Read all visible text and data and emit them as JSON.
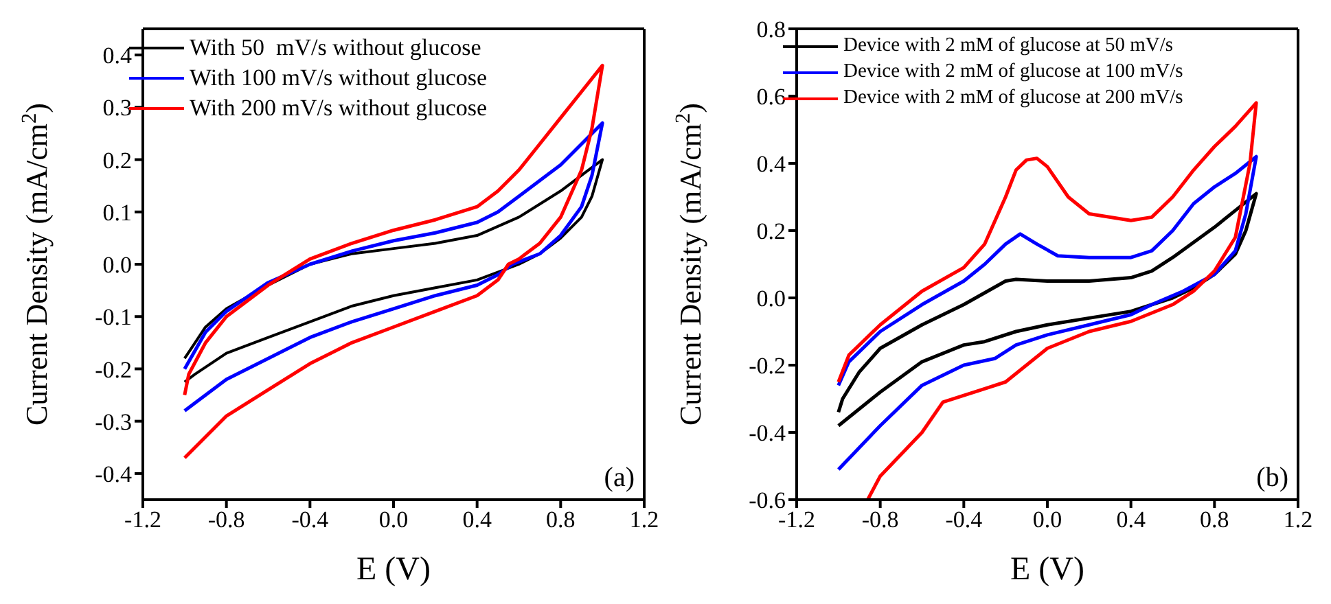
{
  "chart_data": [
    {
      "type": "line",
      "xlabel": "E (V)",
      "ylabel": "Current Density (mA/cm$^{2}$)",
      "xlim": [
        -1.2,
        1.2
      ],
      "xticks": [
        -1.2,
        -0.8,
        -0.4,
        {
          "value": 0,
          "label": "0.0"
        },
        0.4,
        0.8,
        1.2
      ],
      "ylim": [
        -0.45,
        0.45
      ],
      "yticks": [
        -0.4,
        -0.3,
        -0.2,
        -0.1,
        {
          "value": 0,
          "label": "0.0"
        },
        0.1,
        0.2,
        0.3,
        0.4
      ],
      "legend": "top left",
      "marker": "none",
      "line_style": "solid",
      "grid": false,
      "annotations": [
        "(a)"
      ],
      "series": [
        {
          "name": "With 50  mV/s without glucose",
          "color": "#000000",
          "x": [
            -1.0,
            -0.9,
            -0.8,
            -0.6,
            -0.4,
            -0.2,
            0.0,
            0.2,
            0.4,
            0.6,
            0.8,
            0.9,
            1.0,
            0.95,
            0.9,
            0.8,
            0.7,
            0.6,
            0.4,
            0.2,
            0.0,
            -0.2,
            -0.4,
            -0.6,
            -0.8,
            -0.95,
            -1.0
          ],
          "values": [
            -0.18,
            -0.12,
            -0.085,
            -0.04,
            0.0,
            0.02,
            0.03,
            0.04,
            0.055,
            0.09,
            0.14,
            0.17,
            0.2,
            0.13,
            0.09,
            0.05,
            0.02,
            0.0,
            -0.03,
            -0.045,
            -0.06,
            -0.08,
            -0.11,
            -0.14,
            -0.17,
            -0.21,
            -0.225
          ]
        },
        {
          "name": "With 100 mV/s without glucose",
          "color": "#0000ff",
          "x": [
            -1.0,
            -0.9,
            -0.8,
            -0.6,
            -0.4,
            -0.2,
            0.0,
            0.2,
            0.4,
            0.5,
            0.6,
            0.8,
            0.9,
            1.0,
            0.95,
            0.9,
            0.8,
            0.7,
            0.57,
            0.5,
            0.4,
            0.2,
            0.0,
            -0.2,
            -0.4,
            -0.6,
            -0.8,
            -0.95,
            -1.0
          ],
          "values": [
            -0.2,
            -0.13,
            -0.09,
            -0.035,
            0.0,
            0.025,
            0.045,
            0.06,
            0.08,
            0.1,
            0.13,
            0.19,
            0.23,
            0.27,
            0.17,
            0.11,
            0.055,
            0.02,
            0.0,
            -0.02,
            -0.04,
            -0.06,
            -0.085,
            -0.11,
            -0.14,
            -0.18,
            -0.22,
            -0.265,
            -0.28
          ]
        },
        {
          "name": "With 200 mV/s without glucose",
          "color": "#ff0000",
          "x": [
            -1.0,
            -0.98,
            -0.9,
            -0.8,
            -0.6,
            -0.4,
            -0.2,
            0.0,
            0.2,
            0.4,
            0.5,
            0.6,
            0.7,
            0.8,
            0.9,
            1.0,
            0.95,
            0.9,
            0.8,
            0.7,
            0.6,
            0.55,
            0.5,
            0.4,
            0.2,
            0.0,
            -0.2,
            -0.4,
            -0.6,
            -0.8,
            -0.9,
            -1.0
          ],
          "values": [
            -0.25,
            -0.21,
            -0.15,
            -0.1,
            -0.04,
            0.01,
            0.04,
            0.065,
            0.085,
            0.11,
            0.14,
            0.18,
            0.23,
            0.28,
            0.33,
            0.38,
            0.26,
            0.18,
            0.09,
            0.04,
            0.01,
            0.0,
            -0.03,
            -0.06,
            -0.09,
            -0.12,
            -0.15,
            -0.19,
            -0.24,
            -0.29,
            -0.33,
            -0.37
          ]
        }
      ]
    },
    {
      "type": "line",
      "xlabel": "E (V)",
      "ylabel": "Current Density (mA/cm$^{2}$)",
      "xlim": [
        -1.2,
        1.2
      ],
      "xticks": [
        -1.2,
        -0.8,
        -0.4,
        {
          "value": 0,
          "label": "0.0"
        },
        0.4,
        0.8,
        1.2
      ],
      "ylim": [
        -0.6,
        0.8
      ],
      "yticks": [
        -0.6,
        -0.4,
        -0.2,
        {
          "value": 0,
          "label": "0.0"
        },
        0.2,
        0.4,
        0.6,
        0.8
      ],
      "legend": "top left",
      "marker": "none",
      "line_style": "solid",
      "grid": false,
      "annotations": [
        "(b)"
      ],
      "series": [
        {
          "name": "Device with 2 mM of glucose at 50 mV/s",
          "color": "#000000",
          "x": [
            -1.0,
            -0.98,
            -0.9,
            -0.8,
            -0.6,
            -0.4,
            -0.2,
            -0.15,
            0.0,
            0.2,
            0.4,
            0.5,
            0.6,
            0.8,
            0.9,
            1.0,
            0.95,
            0.9,
            0.8,
            0.7,
            0.6,
            0.4,
            0.2,
            0.0,
            -0.15,
            -0.3,
            -0.4,
            -0.6,
            -0.8,
            -1.0
          ],
          "values": [
            -0.34,
            -0.3,
            -0.22,
            -0.15,
            -0.08,
            -0.02,
            0.05,
            0.055,
            0.05,
            0.05,
            0.06,
            0.08,
            0.12,
            0.21,
            0.26,
            0.31,
            0.2,
            0.13,
            0.07,
            0.03,
            0.0,
            -0.04,
            -0.06,
            -0.08,
            -0.1,
            -0.13,
            -0.14,
            -0.19,
            -0.28,
            -0.38
          ]
        },
        {
          "name": "Device with 2 mM of glucose at 100 mV/s",
          "color": "#0000ff",
          "x": [
            -1.0,
            -0.95,
            -0.8,
            -0.6,
            -0.4,
            -0.3,
            -0.2,
            -0.13,
            -0.05,
            0.05,
            0.2,
            0.4,
            0.5,
            0.6,
            0.7,
            0.8,
            0.9,
            1.0,
            0.95,
            0.9,
            0.8,
            0.65,
            0.5,
            0.4,
            0.2,
            0.0,
            -0.15,
            -0.25,
            -0.4,
            -0.6,
            -0.8,
            -1.0
          ],
          "values": [
            -0.26,
            -0.19,
            -0.1,
            -0.02,
            0.05,
            0.1,
            0.16,
            0.19,
            0.16,
            0.125,
            0.12,
            0.12,
            0.14,
            0.2,
            0.28,
            0.33,
            0.37,
            0.42,
            0.25,
            0.14,
            0.07,
            0.02,
            -0.02,
            -0.05,
            -0.08,
            -0.11,
            -0.14,
            -0.18,
            -0.2,
            -0.26,
            -0.38,
            -0.51
          ]
        },
        {
          "name": "Device with 2 mM of glucose at 200 mV/s",
          "color": "#ff0000",
          "x": [
            -1.0,
            -0.95,
            -0.8,
            -0.6,
            -0.4,
            -0.3,
            -0.2,
            -0.15,
            -0.1,
            -0.05,
            0.0,
            0.1,
            0.2,
            0.4,
            0.5,
            0.6,
            0.7,
            0.8,
            0.9,
            1.0,
            0.97,
            0.9,
            0.8,
            0.7,
            0.6,
            0.4,
            0.2,
            0.0,
            -0.1,
            -0.2,
            -0.3,
            -0.4,
            -0.5,
            -0.6,
            -0.8,
            -0.86
          ],
          "values": [
            -0.25,
            -0.17,
            -0.08,
            0.02,
            0.09,
            0.16,
            0.3,
            0.38,
            0.41,
            0.415,
            0.39,
            0.3,
            0.25,
            0.23,
            0.24,
            0.3,
            0.38,
            0.45,
            0.51,
            0.58,
            0.4,
            0.18,
            0.08,
            0.02,
            -0.02,
            -0.07,
            -0.1,
            -0.15,
            -0.2,
            -0.25,
            -0.27,
            -0.29,
            -0.31,
            -0.4,
            -0.53,
            -0.6
          ]
        }
      ]
    }
  ]
}
